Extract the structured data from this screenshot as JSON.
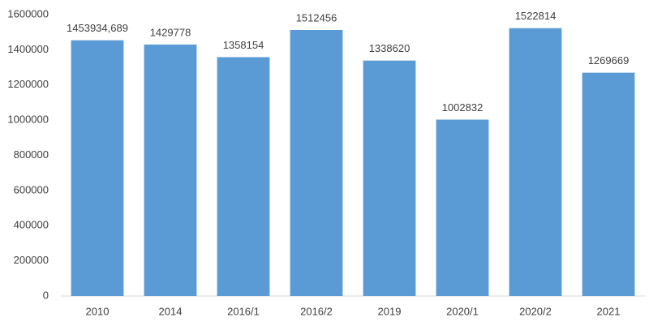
{
  "chart_data": {
    "type": "bar",
    "categories": [
      "2010",
      "2014",
      "2016/1",
      "2016/2",
      "2019",
      "2020/1",
      "2020/2",
      "2021"
    ],
    "values": [
      1453934.689,
      1429778,
      1358154,
      1512456,
      1338620,
      1002832,
      1522814,
      1269669
    ],
    "value_labels": [
      "1453934,689",
      "1429778",
      "1358154",
      "1512456",
      "1338620",
      "1002832",
      "1522814",
      "1269669"
    ],
    "color": "#5b9bd5",
    "ylim": [
      0,
      1600000
    ],
    "yticks": [
      0,
      200000,
      400000,
      600000,
      800000,
      1000000,
      1200000,
      1400000,
      1600000
    ],
    "grid": false
  }
}
